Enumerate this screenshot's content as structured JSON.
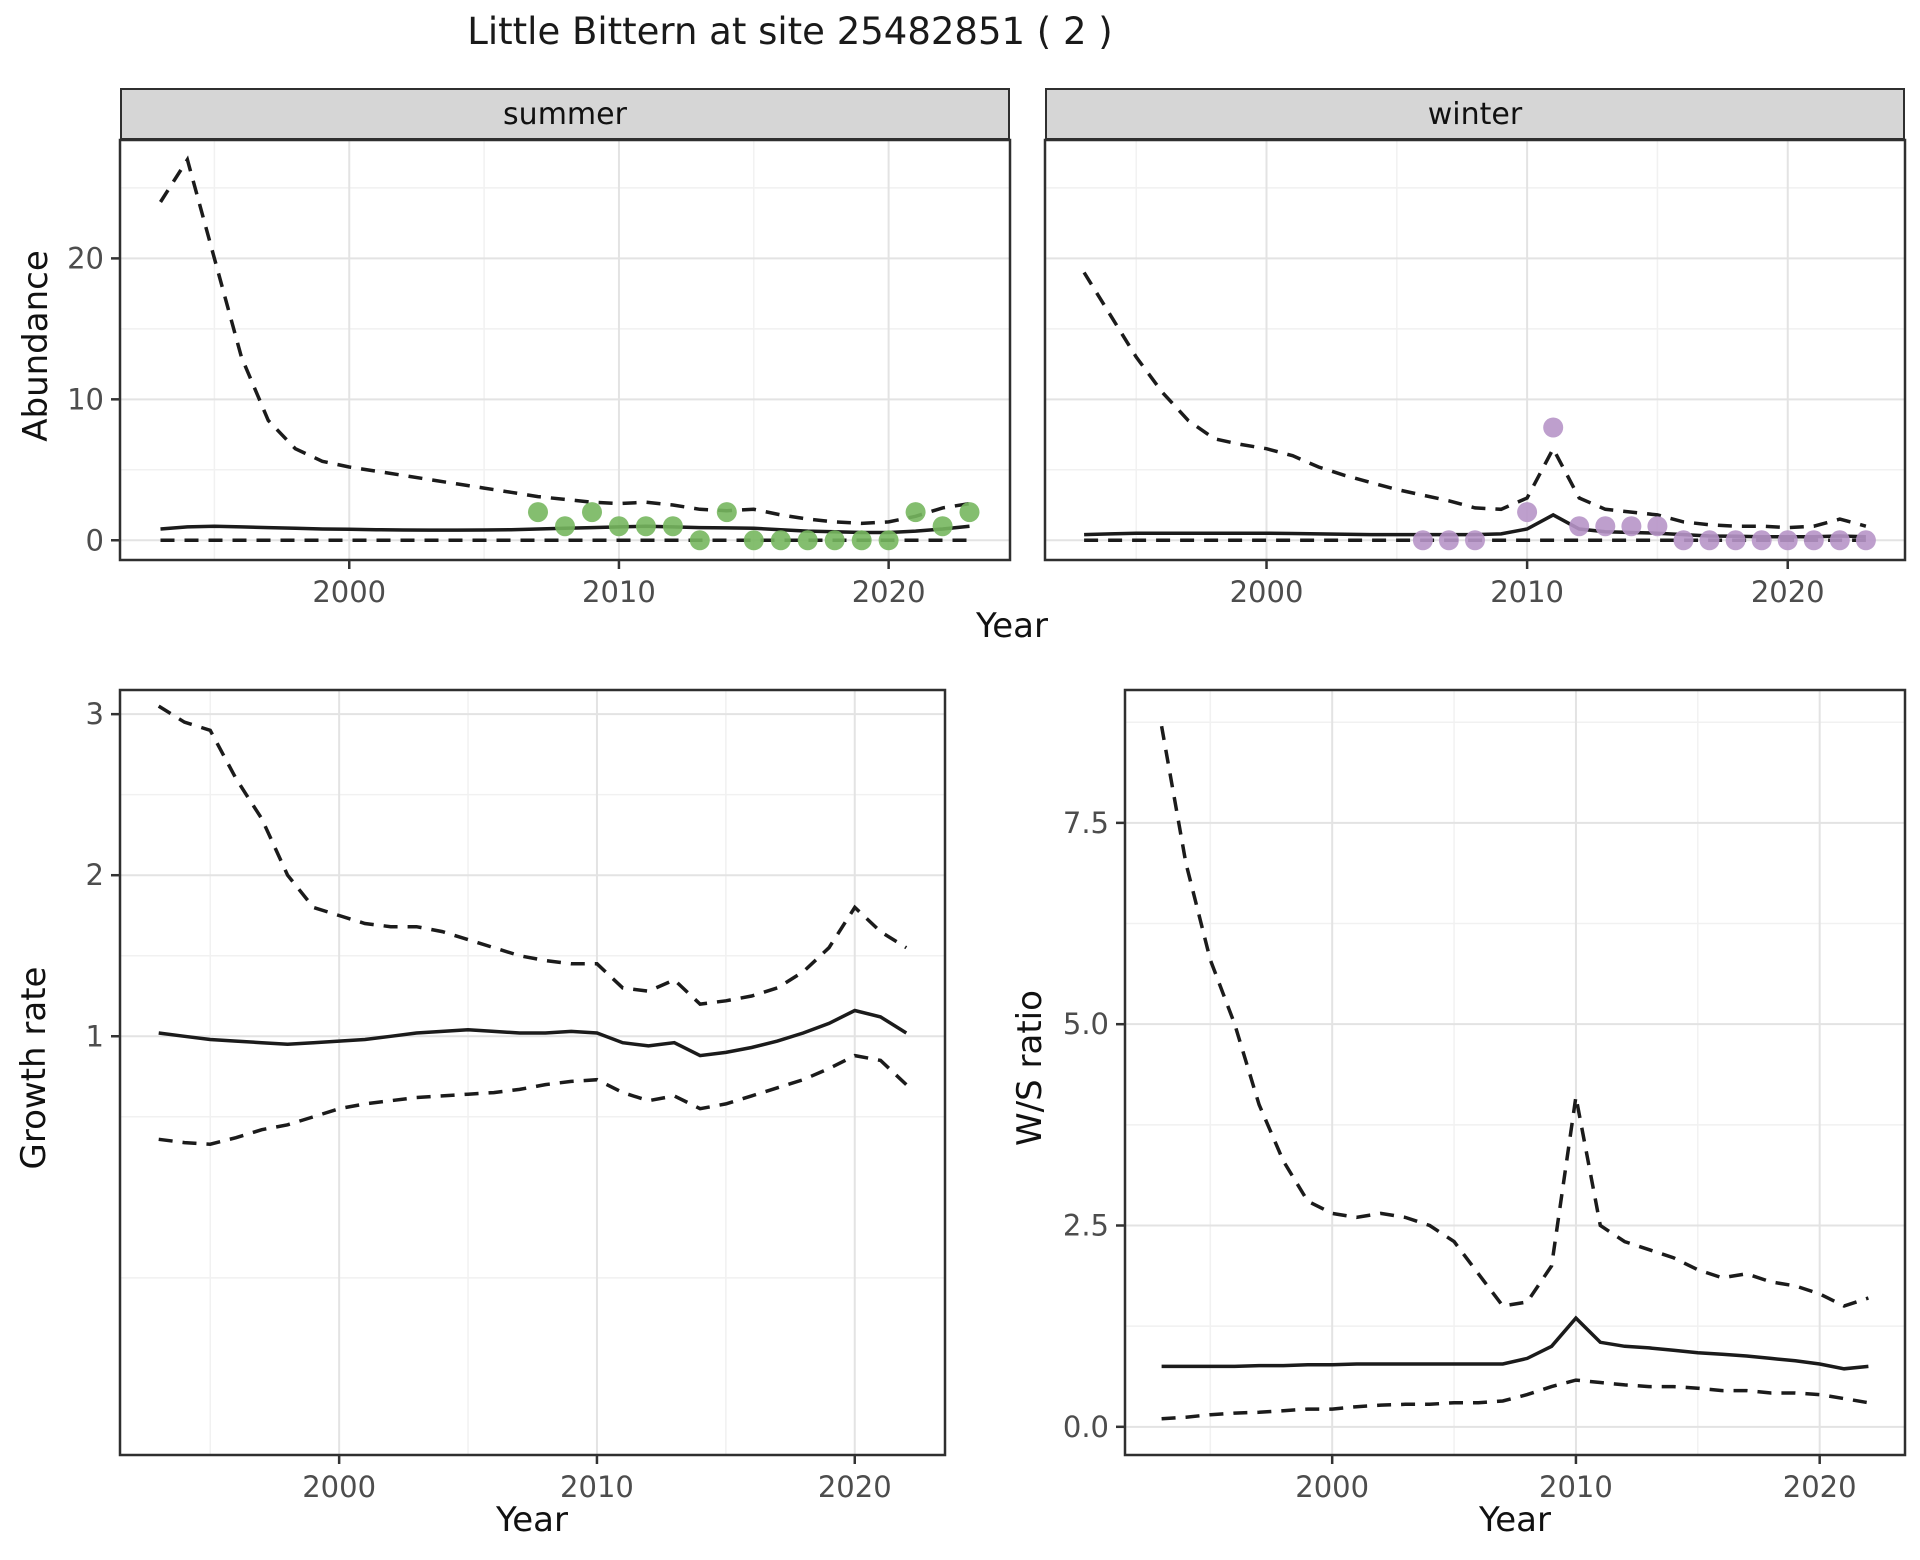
{
  "title": "Little Bittern at site 25482851 ( 2 )",
  "colors": {
    "line": "#1b1b1b",
    "summer_point": "#77b75f",
    "winter_point": "#b795c8",
    "strip_bg": "#d6d6d6",
    "grid_major": "#e3e3e3",
    "grid_minor": "#f1f1f1",
    "tick_label": "#4d4d4d",
    "panel_border": "#2f2f2f"
  },
  "chart_data": [
    {
      "id": "abundance",
      "type": "line",
      "xlabel": "Year",
      "ylabel": "Abundance",
      "facets": [
        "summer",
        "winter"
      ],
      "xlim": [
        1991.5,
        2024.5
      ],
      "ylim": [
        -1.4,
        28.4
      ],
      "xticks": [
        2000,
        2010,
        2020
      ],
      "xticklabels": [
        "2000",
        "2010",
        "2020"
      ],
      "yticks": [
        0,
        10,
        20
      ],
      "yticklabels": [
        "0",
        "10",
        "20"
      ],
      "xminor": [
        1995,
        2005,
        2015
      ],
      "yminor": [
        5,
        15,
        25
      ],
      "legend": "none",
      "facet_data": {
        "summer": {
          "years": [
            1993,
            1994,
            1995,
            1996,
            1997,
            1998,
            1999,
            2000,
            2001,
            2002,
            2003,
            2004,
            2005,
            2006,
            2007,
            2008,
            2009,
            2010,
            2011,
            2012,
            2013,
            2014,
            2015,
            2016,
            2017,
            2018,
            2019,
            2020,
            2021,
            2022,
            2023
          ],
          "upper": [
            24,
            27,
            20,
            13,
            8.5,
            6.5,
            5.6,
            5.2,
            4.9,
            4.6,
            4.3,
            4,
            3.7,
            3.4,
            3.1,
            2.9,
            2.7,
            2.6,
            2.7,
            2.5,
            2.2,
            2.1,
            2.2,
            1.8,
            1.5,
            1.3,
            1.2,
            1.3,
            1.7,
            2.3,
            2.6
          ],
          "mean": [
            0.8,
            0.95,
            1,
            0.95,
            0.9,
            0.85,
            0.8,
            0.78,
            0.75,
            0.73,
            0.72,
            0.72,
            0.73,
            0.75,
            0.8,
            0.85,
            0.9,
            0.95,
            1,
            0.95,
            0.9,
            0.88,
            0.85,
            0.75,
            0.65,
            0.6,
            0.55,
            0.55,
            0.65,
            0.8,
            1
          ],
          "lower": [
            0,
            0,
            0,
            0,
            0,
            0,
            0,
            0,
            0,
            0,
            0,
            0,
            0,
            0,
            0,
            0,
            0,
            0,
            0,
            0,
            0,
            0,
            0,
            0,
            0,
            0,
            0,
            0,
            0,
            0,
            0
          ],
          "points": {
            "x": [
              2007,
              2008,
              2009,
              2010,
              2011,
              2012,
              2013,
              2014,
              2015,
              2016,
              2017,
              2018,
              2019,
              2020,
              2021,
              2022,
              2023
            ],
            "y": [
              2,
              1,
              2,
              1,
              1,
              1,
              0,
              2,
              0,
              0,
              0,
              0,
              0,
              0,
              2,
              1,
              2
            ],
            "color_key": "summer_point"
          }
        },
        "winter": {
          "years": [
            1993,
            1994,
            1995,
            1996,
            1997,
            1998,
            1999,
            2000,
            2001,
            2002,
            2003,
            2004,
            2005,
            2006,
            2007,
            2008,
            2009,
            2010,
            2011,
            2012,
            2013,
            2014,
            2015,
            2016,
            2017,
            2018,
            2019,
            2020,
            2021,
            2022,
            2023
          ],
          "upper": [
            19,
            16,
            13,
            10.5,
            8.5,
            7.2,
            6.8,
            6.5,
            6,
            5.2,
            4.6,
            4.1,
            3.6,
            3.2,
            2.8,
            2.3,
            2.2,
            3,
            6.5,
            3,
            2.2,
            2,
            1.8,
            1.3,
            1.1,
            1,
            1,
            0.9,
            1,
            1.5,
            1
          ],
          "mean": [
            0.4,
            0.45,
            0.5,
            0.5,
            0.5,
            0.5,
            0.5,
            0.5,
            0.48,
            0.45,
            0.42,
            0.4,
            0.4,
            0.4,
            0.4,
            0.4,
            0.45,
            0.8,
            1.8,
            0.8,
            0.6,
            0.55,
            0.5,
            0.4,
            0.3,
            0.28,
            0.25,
            0.25,
            0.25,
            0.3,
            0.25
          ],
          "lower": [
            0,
            0,
            0,
            0,
            0,
            0,
            0,
            0,
            0,
            0,
            0,
            0,
            0,
            0,
            0,
            0,
            0,
            0,
            0,
            0,
            0,
            0,
            0,
            0,
            0,
            0,
            0,
            0,
            0,
            0,
            0
          ],
          "points": {
            "x": [
              2006,
              2007,
              2008,
              2010,
              2011,
              2012,
              2013,
              2014,
              2015,
              2016,
              2017,
              2018,
              2019,
              2020,
              2021,
              2022,
              2023
            ],
            "y": [
              0,
              0,
              0,
              2,
              8,
              1,
              1,
              1,
              1,
              0,
              0,
              0,
              0,
              0,
              0,
              0,
              0
            ],
            "color_key": "winter_point"
          }
        }
      }
    },
    {
      "id": "growth_rate",
      "type": "line",
      "xlabel": "Year",
      "ylabel": "Growth rate",
      "xlim": [
        1991.5,
        2023.5
      ],
      "ylim": [
        -1.6,
        3.15
      ],
      "xticks": [
        2000,
        2010,
        2020
      ],
      "xticklabels": [
        "2000",
        "2010",
        "2020"
      ],
      "yticks": [
        1,
        2,
        3
      ],
      "yticklabels": [
        "1",
        "2",
        "3"
      ],
      "xminor": [
        1995,
        2005,
        2015
      ],
      "yminor": [
        -0.5,
        0.5,
        1.5,
        2.5
      ],
      "legend": "none",
      "years": [
        1993,
        1994,
        1995,
        1996,
        1997,
        1998,
        1999,
        2000,
        2001,
        2002,
        2003,
        2004,
        2005,
        2006,
        2007,
        2008,
        2009,
        2010,
        2011,
        2012,
        2013,
        2014,
        2015,
        2016,
        2017,
        2018,
        2019,
        2020,
        2021,
        2022
      ],
      "upper": [
        3.05,
        2.95,
        2.9,
        2.6,
        2.35,
        2,
        1.8,
        1.75,
        1.7,
        1.68,
        1.68,
        1.65,
        1.6,
        1.55,
        1.5,
        1.47,
        1.45,
        1.45,
        1.3,
        1.28,
        1.35,
        1.2,
        1.22,
        1.25,
        1.3,
        1.4,
        1.55,
        1.8,
        1.65,
        1.55
      ],
      "mean": [
        1.02,
        1,
        0.98,
        0.97,
        0.96,
        0.95,
        0.96,
        0.97,
        0.98,
        1,
        1.02,
        1.03,
        1.04,
        1.03,
        1.02,
        1.02,
        1.03,
        1.02,
        0.96,
        0.94,
        0.96,
        0.88,
        0.9,
        0.93,
        0.97,
        1.02,
        1.08,
        1.16,
        1.12,
        1.02
      ],
      "lower": [
        0.36,
        0.34,
        0.33,
        0.37,
        0.42,
        0.45,
        0.5,
        0.55,
        0.58,
        0.6,
        0.62,
        0.63,
        0.64,
        0.65,
        0.67,
        0.7,
        0.72,
        0.73,
        0.65,
        0.6,
        0.63,
        0.55,
        0.58,
        0.63,
        0.68,
        0.73,
        0.8,
        0.88,
        0.85,
        0.7
      ]
    },
    {
      "id": "ws_ratio",
      "type": "line",
      "xlabel": "Year",
      "ylabel": "W/S ratio",
      "xlim": [
        1991.5,
        2023.5
      ],
      "ylim": [
        -0.35,
        9.15
      ],
      "xticks": [
        2000,
        2010,
        2020
      ],
      "xticklabels": [
        "2000",
        "2010",
        "2020"
      ],
      "yticks": [
        0,
        2.5,
        5,
        7.5
      ],
      "yticklabels": [
        "0.0",
        "2.5",
        "5.0",
        "7.5"
      ],
      "xminor": [
        1995,
        2005,
        2015
      ],
      "yminor": [
        1.25,
        3.75,
        6.25,
        8.75
      ],
      "legend": "none",
      "years": [
        1993,
        1994,
        1995,
        1996,
        1997,
        1998,
        1999,
        2000,
        2001,
        2002,
        2003,
        2004,
        2005,
        2006,
        2007,
        2008,
        2009,
        2010,
        2011,
        2012,
        2013,
        2014,
        2015,
        2016,
        2017,
        2018,
        2019,
        2020,
        2021,
        2022
      ],
      "upper": [
        8.7,
        7,
        5.8,
        5,
        4,
        3.3,
        2.8,
        2.65,
        2.6,
        2.65,
        2.6,
        2.5,
        2.3,
        1.9,
        1.5,
        1.55,
        2,
        4.1,
        2.5,
        2.3,
        2.2,
        2.1,
        1.95,
        1.85,
        1.9,
        1.8,
        1.75,
        1.65,
        1.5,
        1.6
      ],
      "mean": [
        0.75,
        0.75,
        0.75,
        0.75,
        0.76,
        0.76,
        0.77,
        0.77,
        0.78,
        0.78,
        0.78,
        0.78,
        0.78,
        0.78,
        0.78,
        0.85,
        1,
        1.35,
        1.05,
        1,
        0.98,
        0.95,
        0.92,
        0.9,
        0.88,
        0.85,
        0.82,
        0.78,
        0.72,
        0.75
      ],
      "lower": [
        0.1,
        0.12,
        0.15,
        0.17,
        0.18,
        0.2,
        0.22,
        0.22,
        0.25,
        0.27,
        0.28,
        0.28,
        0.3,
        0.3,
        0.32,
        0.4,
        0.5,
        0.58,
        0.55,
        0.52,
        0.5,
        0.5,
        0.48,
        0.45,
        0.45,
        0.42,
        0.42,
        0.4,
        0.35,
        0.3
      ]
    }
  ]
}
